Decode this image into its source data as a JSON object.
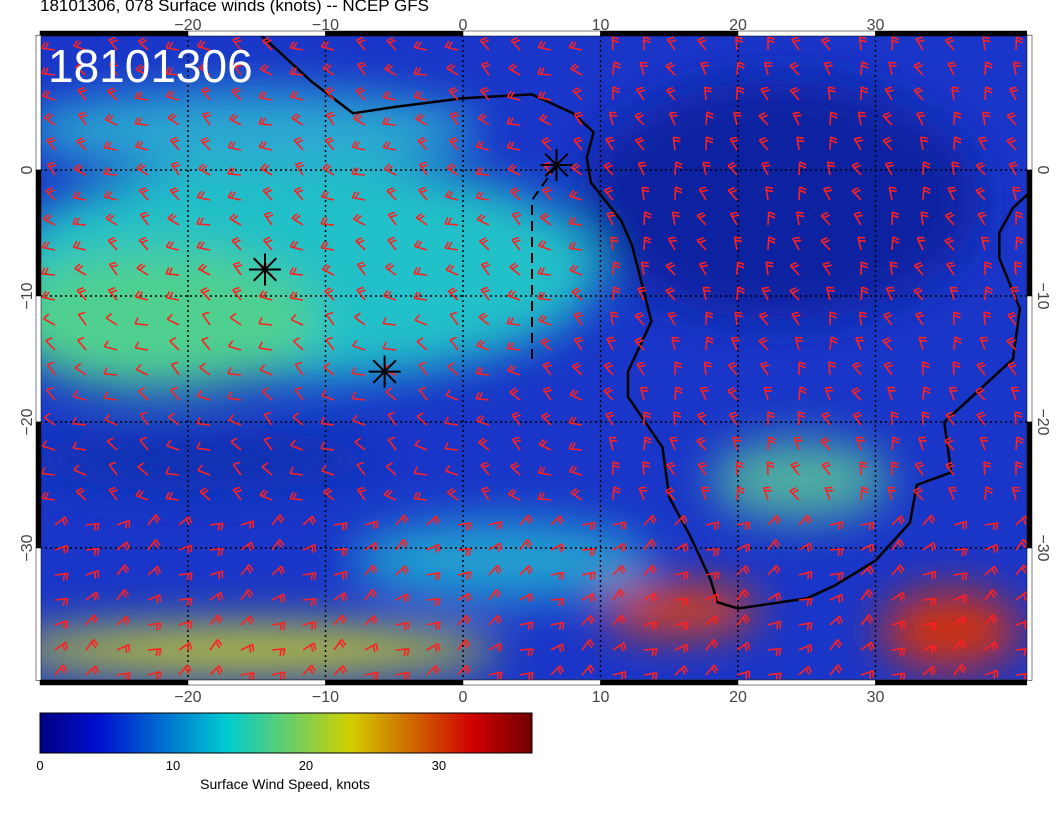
{
  "title": "18101306, 078 Surface winds (knots) -- NCEP GFS",
  "stamp": "18101306",
  "map": {
    "region": "South Atlantic / Southern Africa",
    "lon_range": [
      -31,
      41
    ],
    "lat_range": [
      -40.5,
      10.7
    ],
    "lon_ticks": [
      "−20",
      "−10",
      "0",
      "10",
      "20",
      "30"
    ],
    "lon_tick_values": [
      -20,
      -10,
      0,
      10,
      20,
      30
    ],
    "lat_ticks": [
      "0",
      "−10",
      "−20",
      "−30"
    ],
    "lat_tick_values": [
      0,
      -10,
      -20,
      -30
    ],
    "grid": "dotted",
    "barb_color": "#ff2020",
    "markers": [
      {
        "icon": "asterisk-icon",
        "lon": 6.8,
        "lat": 0.4
      },
      {
        "icon": "asterisk-icon",
        "lon": -14.4,
        "lat": -7.9
      },
      {
        "icon": "asterisk-icon",
        "lon": -5.7,
        "lat": -16.0
      }
    ]
  },
  "colorbar": {
    "label": "Surface Wind Speed, knots",
    "range": [
      0,
      37
    ],
    "ticks": [
      "0",
      "10",
      "20",
      "30"
    ],
    "tick_values": [
      0,
      10,
      20,
      30
    ],
    "colors": [
      "#000080",
      "#0010d0",
      "#00c8d0",
      "#d0d000",
      "#d00000",
      "#700000"
    ]
  }
}
